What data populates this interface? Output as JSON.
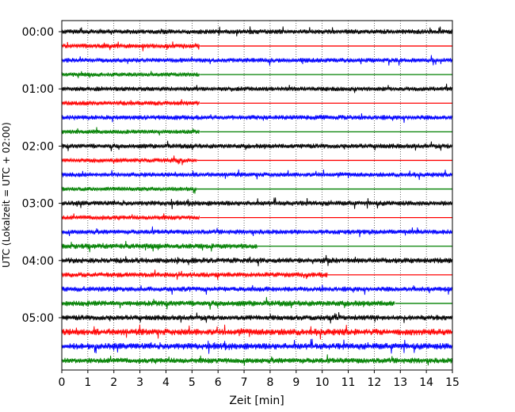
{
  "chart_data": {
    "type": "line",
    "subtype": "helicorder",
    "title": "",
    "xlabel": "Zeit  [min]",
    "ylabel": "UTC (Lokalzeit = UTC + 02:00)",
    "xlim": [
      0,
      15
    ],
    "x_ticks": [
      "0",
      "1",
      "2",
      "3",
      "4",
      "5",
      "6",
      "7",
      "8",
      "9",
      "10",
      "11",
      "12",
      "13",
      "14",
      "15"
    ],
    "y_tick_labels": [
      "00:00",
      "01:00",
      "02:00",
      "03:00",
      "04:00",
      "05:00"
    ],
    "rows_per_hour": 4,
    "row_minutes": 15,
    "grid": "vertical dotted",
    "series": [
      {
        "color": "#000000",
        "noise_levels": [
          0.55,
          0.5,
          0.55,
          0.6,
          0.7,
          0.65
        ]
      },
      {
        "color": "#ff0000",
        "noise_levels": [
          0.5,
          0.5,
          0.5,
          0.5,
          0.6,
          0.9
        ]
      },
      {
        "color": "#0000ff",
        "noise_levels": [
          0.5,
          0.55,
          0.5,
          0.55,
          0.6,
          0.9
        ]
      },
      {
        "color": "#008000",
        "noise_levels": [
          0.45,
          0.45,
          0.45,
          0.65,
          0.75,
          0.7
        ]
      }
    ],
    "traces": [
      {
        "row": 0,
        "color": "#000000",
        "end_min": 15
      },
      {
        "row": 1,
        "color": "#ff0000",
        "end_min": 5.3
      },
      {
        "row": 2,
        "color": "#0000ff",
        "end_min": 15
      },
      {
        "row": 3,
        "color": "#008000",
        "end_min": 5.3
      },
      {
        "row": 4,
        "color": "#000000",
        "end_min": 15
      },
      {
        "row": 5,
        "color": "#ff0000",
        "end_min": 5.3
      },
      {
        "row": 6,
        "color": "#0000ff",
        "end_min": 15
      },
      {
        "row": 7,
        "color": "#008000",
        "end_min": 5.3
      },
      {
        "row": 8,
        "color": "#000000",
        "end_min": 15
      },
      {
        "row": 9,
        "color": "#ff0000",
        "end_min": 5.2
      },
      {
        "row": 10,
        "color": "#0000ff",
        "end_min": 15
      },
      {
        "row": 11,
        "color": "#008000",
        "end_min": 5.2
      },
      {
        "row": 12,
        "color": "#000000",
        "end_min": 15
      },
      {
        "row": 13,
        "color": "#ff0000",
        "end_min": 5.3
      },
      {
        "row": 14,
        "color": "#0000ff",
        "end_min": 15
      },
      {
        "row": 15,
        "color": "#008000",
        "end_min": 7.5
      },
      {
        "row": 16,
        "color": "#000000",
        "end_min": 15
      },
      {
        "row": 17,
        "color": "#ff0000",
        "end_min": 10.2
      },
      {
        "row": 18,
        "color": "#0000ff",
        "end_min": 15
      },
      {
        "row": 19,
        "color": "#008000",
        "end_min": 12.8
      },
      {
        "row": 20,
        "color": "#000000",
        "end_min": 15
      },
      {
        "row": 21,
        "color": "#ff0000",
        "end_min": 15
      },
      {
        "row": 22,
        "color": "#0000ff",
        "end_min": 15
      },
      {
        "row": 23,
        "color": "#008000",
        "end_min": 15
      }
    ]
  }
}
